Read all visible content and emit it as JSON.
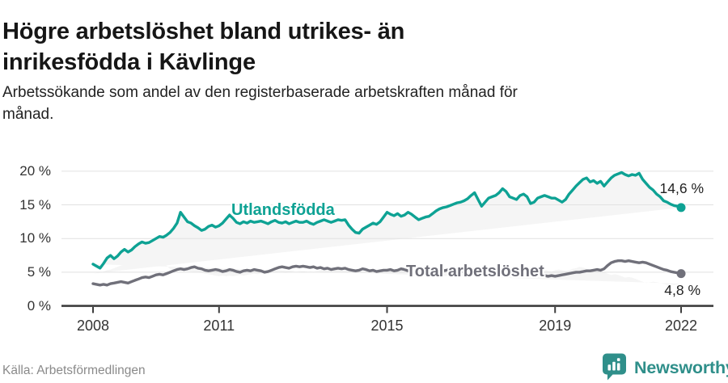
{
  "header": {
    "title_lines": [
      "Högre arbetslöshet bland utrikes- än",
      "inrikesfödda i Kävlinge"
    ],
    "subtitle_lines": [
      "Arbetssökande som andel av den registerbaserade arbetskraften månad för",
      "månad."
    ]
  },
  "chart_data": {
    "type": "line",
    "title": "Högre arbetslöshet bland utrikes- än inrikesfödda i Kävlinge",
    "subtitle": "Arbetssökande som andel av den registerbaserade arbetskraften månad för månad.",
    "x_unit": "month",
    "x_start_year": 2008,
    "x_end": "2022-01",
    "ylim": [
      0,
      21.5
    ],
    "grid": true,
    "legend": "inline-labels",
    "band_fill_between_series": true,
    "yticks": [
      {
        "value": 0,
        "label": "0 %"
      },
      {
        "value": 5,
        "label": "5 %"
      },
      {
        "value": 10,
        "label": "10 %"
      },
      {
        "value": 15,
        "label": "15 %"
      },
      {
        "value": 20,
        "label": "20 %"
      }
    ],
    "xticks": [
      {
        "year": 2008,
        "label": "2008"
      },
      {
        "year": 2011,
        "label": "2011"
      },
      {
        "year": 2015,
        "label": "2015"
      },
      {
        "year": 2019,
        "label": "2019"
      },
      {
        "year": 2022,
        "label": "2022"
      }
    ],
    "series": [
      {
        "name": "Utlandsfödda",
        "color": "#0ea294",
        "end_label": "14,6 %",
        "end_value": 14.6,
        "values": [
          6.2,
          5.9,
          5.6,
          6.3,
          7.1,
          7.5,
          7.0,
          7.4,
          8.0,
          8.4,
          8.0,
          8.3,
          8.8,
          9.2,
          9.5,
          9.3,
          9.4,
          9.7,
          10.0,
          10.3,
          10.2,
          10.5,
          10.9,
          11.5,
          12.3,
          13.9,
          13.2,
          12.5,
          12.3,
          11.9,
          11.6,
          11.2,
          11.4,
          11.8,
          12.0,
          11.7,
          11.9,
          12.3,
          12.9,
          13.5,
          13.0,
          12.4,
          12.2,
          12.5,
          12.3,
          12.6,
          12.4,
          12.5,
          12.6,
          12.4,
          12.2,
          12.5,
          12.7,
          12.4,
          12.3,
          12.5,
          12.2,
          12.4,
          12.6,
          12.4,
          12.4,
          12.6,
          12.3,
          12.1,
          12.4,
          12.6,
          12.8,
          12.6,
          12.4,
          12.6,
          12.8,
          12.7,
          12.8,
          12.0,
          11.4,
          10.9,
          10.8,
          11.4,
          11.7,
          12.0,
          12.3,
          12.1,
          12.5,
          13.2,
          13.9,
          13.6,
          13.4,
          13.7,
          13.3,
          13.5,
          13.9,
          13.6,
          13.2,
          12.8,
          13.0,
          13.2,
          13.3,
          13.7,
          14.1,
          14.4,
          14.6,
          14.7,
          14.9,
          15.1,
          15.3,
          15.4,
          15.6,
          15.9,
          16.4,
          16.8,
          15.8,
          14.8,
          15.4,
          16.0,
          16.2,
          16.4,
          16.8,
          17.4,
          17.0,
          16.2,
          16.0,
          15.8,
          16.4,
          16.6,
          16.2,
          15.2,
          15.4,
          16.0,
          16.2,
          16.4,
          16.2,
          16.0,
          16.0,
          15.7,
          15.4,
          15.8,
          16.6,
          17.2,
          17.8,
          18.3,
          18.8,
          19.0,
          18.4,
          18.6,
          18.2,
          18.5,
          17.8,
          18.4,
          19.0,
          19.4,
          19.6,
          19.8,
          19.5,
          19.3,
          19.5,
          19.4,
          19.7,
          18.8,
          18.2,
          17.6,
          17.2,
          16.6,
          16.2,
          15.6,
          15.4,
          15.1,
          14.9,
          14.8,
          14.6
        ]
      },
      {
        "name": "Total arbetslöshet",
        "color": "#70707a",
        "end_label": "4,8 %",
        "end_value": 4.8,
        "values": [
          3.3,
          3.2,
          3.1,
          3.2,
          3.1,
          3.3,
          3.4,
          3.5,
          3.6,
          3.5,
          3.4,
          3.6,
          3.8,
          4.0,
          4.2,
          4.3,
          4.2,
          4.4,
          4.6,
          4.7,
          4.6,
          4.8,
          5.0,
          5.2,
          5.4,
          5.5,
          5.4,
          5.5,
          5.7,
          5.8,
          5.6,
          5.5,
          5.3,
          5.2,
          5.3,
          5.4,
          5.3,
          5.1,
          5.2,
          5.4,
          5.3,
          5.1,
          5.0,
          5.2,
          5.3,
          5.2,
          5.4,
          5.3,
          5.2,
          5.0,
          5.1,
          5.3,
          5.5,
          5.7,
          5.8,
          5.7,
          5.6,
          5.8,
          5.9,
          5.8,
          5.9,
          5.8,
          5.7,
          5.8,
          5.6,
          5.7,
          5.5,
          5.6,
          5.4,
          5.5,
          5.6,
          5.5,
          5.6,
          5.4,
          5.3,
          5.2,
          5.3,
          5.5,
          5.4,
          5.2,
          5.3,
          5.1,
          5.2,
          5.3,
          5.3,
          5.4,
          5.2,
          5.3,
          5.5,
          5.4,
          5.2,
          5.1,
          5.2,
          5.0,
          5.1,
          5.2,
          5.3,
          5.2,
          5.4,
          5.3,
          5.2,
          5.3,
          5.4,
          5.3,
          5.2,
          5.1,
          5.2,
          5.1,
          5.0,
          5.1,
          5.2,
          5.1,
          5.0,
          4.9,
          5.0,
          5.1,
          5.0,
          4.9,
          4.8,
          4.9,
          4.8,
          4.7,
          4.8,
          4.7,
          4.6,
          4.5,
          4.6,
          4.5,
          4.4,
          4.5,
          4.4,
          4.5,
          4.4,
          4.5,
          4.6,
          4.7,
          4.8,
          4.9,
          5.0,
          5.0,
          5.1,
          5.2,
          5.2,
          5.3,
          5.4,
          5.3,
          5.5,
          6.0,
          6.4,
          6.6,
          6.7,
          6.7,
          6.6,
          6.7,
          6.6,
          6.5,
          6.4,
          6.5,
          6.4,
          6.2,
          6.0,
          5.8,
          5.6,
          5.4,
          5.3,
          5.1,
          5.0,
          4.9,
          4.8
        ]
      }
    ]
  },
  "colors": {
    "accent_teal": "#0ea294",
    "line_gray": "#70707a",
    "band_fill": "#f5f5f5",
    "gridline": "#e1e1e1",
    "axis": "#3d3d3d",
    "logo_teal": "#2f8f8a"
  },
  "footer": {
    "source": "Källa: Arbetsförmedlingen",
    "brand": "Newsworthy"
  }
}
